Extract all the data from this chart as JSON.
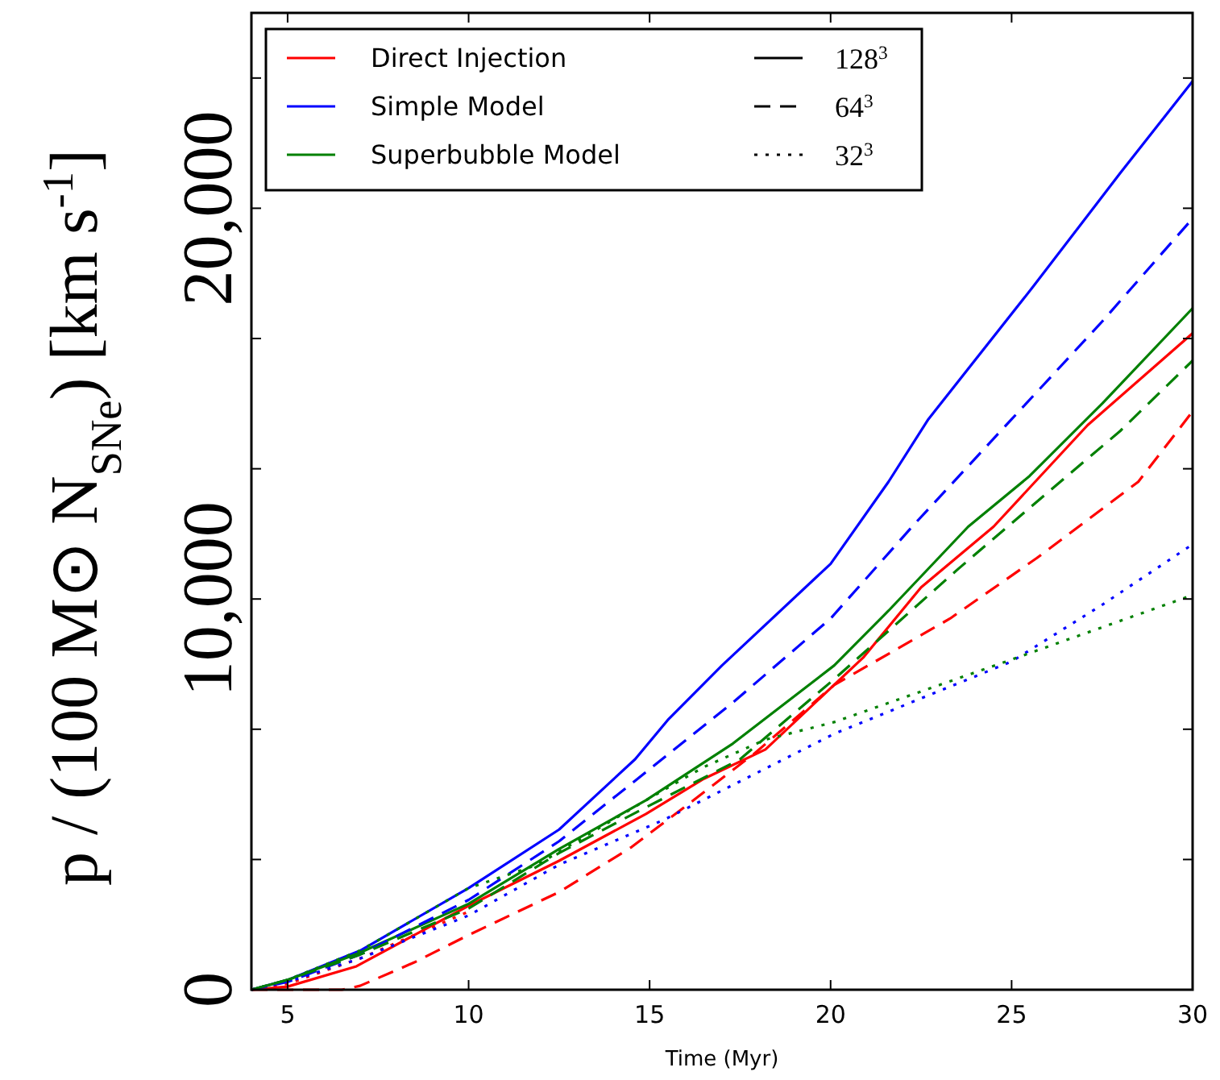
{
  "chart_data": {
    "type": "line",
    "xlabel": "Time (Myr)",
    "ylabel": "p / (100 M⊙ N$_{SNe}$) [km s$^{-1}$]",
    "xlim": [
      4,
      30
    ],
    "xticks": [
      5,
      10,
      15,
      20,
      25,
      30
    ],
    "ylim": [
      0,
      25000
    ],
    "yticks": [
      {
        "value": 0,
        "label": "0"
      },
      {
        "value": 3333,
        "label": null
      },
      {
        "value": 6667,
        "label": null
      },
      {
        "value": 10000,
        "label": "10,000"
      },
      {
        "value": 13333,
        "label": null
      },
      {
        "value": 16667,
        "label": null
      },
      {
        "value": 20000,
        "label": "20,000"
      },
      {
        "value": 23333,
        "label": null
      }
    ],
    "grid": false,
    "legend": "top left",
    "marker": "none",
    "annotations": [
      "128$^{3}$",
      "64$^{3}$",
      "32$^{3}$"
    ],
    "series": [
      {
        "name": "Direct Injection",
        "color": "#ff0000",
        "line_style": "solid",
        "x": [
          4,
          5,
          6.9,
          10,
          12.5,
          14.9,
          16.5,
          18.2,
          20.9,
          22.5,
          24.5,
          27.1,
          30
        ],
        "values": [
          0,
          80,
          600,
          2150,
          3300,
          4500,
          5400,
          6150,
          8500,
          10300,
          11850,
          14450,
          16800
        ]
      },
      {
        "name": "Simple Model",
        "color": "#0000ff",
        "line_style": "solid",
        "x": [
          4,
          5,
          7,
          10,
          12.5,
          14.6,
          15.5,
          17,
          20,
          21.6,
          22.7,
          25.6,
          28,
          30
        ],
        "values": [
          0,
          250,
          1000,
          2600,
          4100,
          5900,
          6900,
          8300,
          10900,
          13000,
          14600,
          18000,
          20900,
          23250
        ]
      },
      {
        "name": "Superbubble Model",
        "color": "#008000",
        "line_style": "solid",
        "x": [
          4,
          5,
          7,
          10,
          12.5,
          14.9,
          17.3,
          20.1,
          21.6,
          23.8,
          25.5,
          27.5,
          30
        ],
        "values": [
          0,
          250,
          950,
          2200,
          3600,
          4850,
          6300,
          8300,
          9700,
          11850,
          13150,
          15000,
          17440
        ]
      },
      {
        "color": "#ff0000",
        "line_style": "dashed",
        "x": [
          4,
          6.5,
          7,
          8.5,
          10,
          12.5,
          14.5,
          16,
          17.9,
          20.1,
          23.3,
          25.7,
          28.5,
          30
        ],
        "values": [
          0,
          0,
          100,
          700,
          1400,
          2500,
          3650,
          4700,
          6050,
          7800,
          9500,
          11050,
          13000,
          14800
        ]
      },
      {
        "color": "#0000ff",
        "line_style": "dashed",
        "x": [
          4,
          5,
          7,
          10,
          12.5,
          14.6,
          17.3,
          20,
          22.3,
          25,
          27.5,
          30
        ],
        "values": [
          0,
          200,
          900,
          2300,
          3800,
          5350,
          7350,
          9500,
          11900,
          14600,
          17100,
          19740
        ]
      },
      {
        "color": "#008000",
        "line_style": "dashed",
        "x": [
          4,
          5,
          7,
          10,
          12.5,
          14.9,
          17.5,
          20.1,
          23.5,
          25.9,
          28,
          30
        ],
        "values": [
          0,
          250,
          900,
          2080,
          3500,
          4670,
          5900,
          7950,
          10750,
          12650,
          14300,
          16100
        ]
      },
      {
        "color": "#ff0000",
        "line_style": "dotted",
        "x": [
          4,
          5,
          7,
          10
        ],
        "values": [
          0,
          150,
          800,
          2000
        ]
      },
      {
        "color": "#0000ff",
        "line_style": "dotted",
        "x": [
          4,
          5,
          7,
          10,
          12.5,
          15.4,
          20.1,
          25,
          27.5,
          30
        ],
        "values": [
          0,
          200,
          800,
          1900,
          3200,
          4350,
          6550,
          8400,
          9850,
          11400
        ]
      },
      {
        "color": "#008000",
        "line_style": "dotted",
        "x": [
          4,
          5,
          7,
          10,
          11.9,
          14.9,
          16.5,
          18.2,
          20.1,
          25,
          30
        ],
        "values": [
          0,
          250,
          1000,
          2600,
          3200,
          4850,
          5700,
          6400,
          6850,
          8450,
          10100
        ]
      }
    ]
  }
}
